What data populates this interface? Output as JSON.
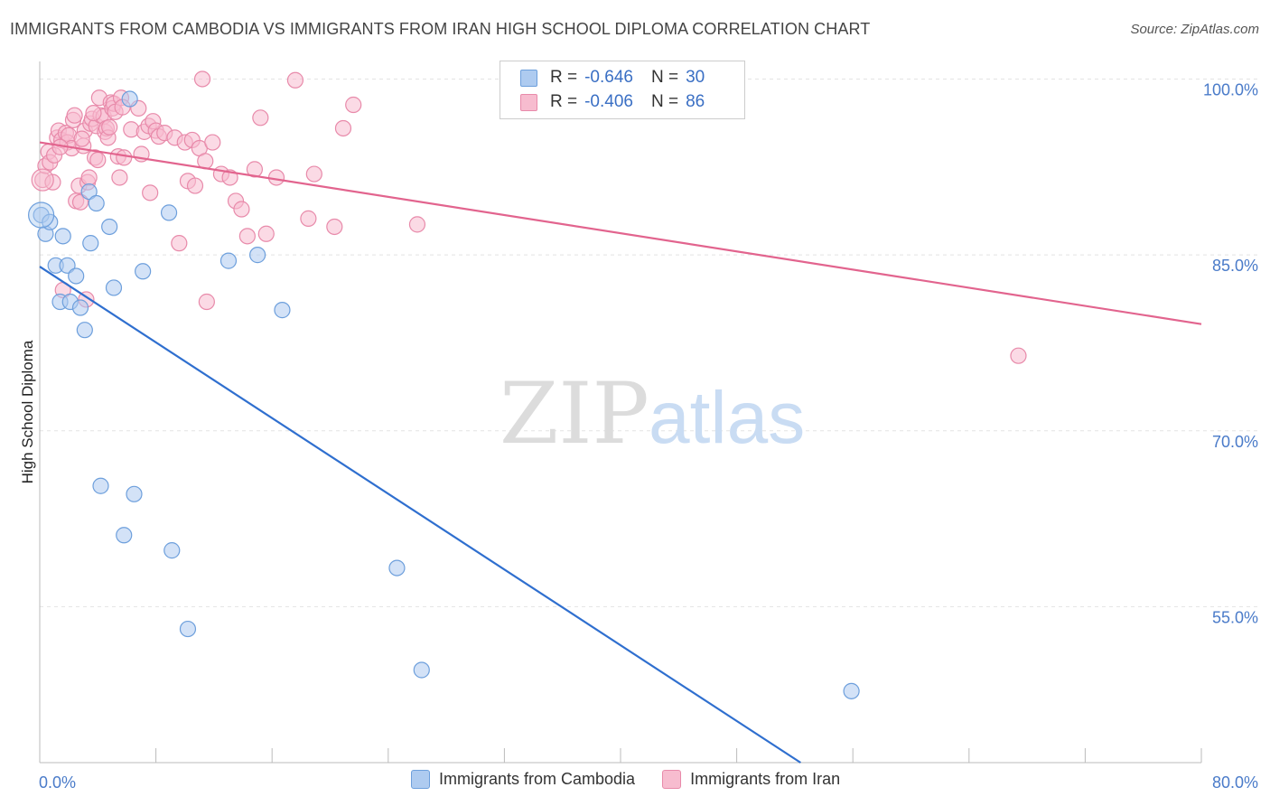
{
  "title": "IMMIGRANTS FROM CAMBODIA VS IMMIGRANTS FROM IRAN HIGH SCHOOL DIPLOMA CORRELATION CHART",
  "source": "Source: ZipAtlas.com",
  "watermark": {
    "zip": "ZIP",
    "atlas": "atlas"
  },
  "legend": {
    "rows": [
      {
        "r_label": "R =",
        "r_value": "-0.646",
        "n_label": "N =",
        "n_value": "30"
      },
      {
        "r_label": "R =",
        "r_value": "-0.406",
        "n_label": "N =",
        "n_value": "86"
      }
    ]
  },
  "colors": {
    "cambodia_fill": "#aecbf0",
    "cambodia_stroke": "#6d9fdc",
    "cambodia_line": "#2f6fcf",
    "iran_fill": "#f7bccf",
    "iran_stroke": "#e88aaa",
    "iran_line": "#e2648e",
    "grid": "#e3e3e3",
    "tick_text": "#4a7bc9"
  },
  "chart_data": {
    "type": "scatter",
    "title": "IMMIGRANTS FROM CAMBODIA VS IMMIGRANTS FROM IRAN HIGH SCHOOL DIPLOMA CORRELATION CHART",
    "xlabel": "",
    "ylabel": "High School Diploma",
    "xlim": [
      0,
      80
    ],
    "ylim": [
      41.7,
      101.5
    ],
    "x_tick_labels": [
      "0.0%",
      "80.0%"
    ],
    "y_ticks": [
      55,
      70,
      85,
      100
    ],
    "y_tick_labels": [
      "55.0%",
      "70.0%",
      "85.0%",
      "100.0%"
    ],
    "grid": "horizontal dashed",
    "legend_position": "top-center",
    "series": [
      {
        "name": "Immigrants from Cambodia",
        "r": -0.646,
        "n": 30,
        "trend": {
          "x": [
            0,
            52.4
          ],
          "y": [
            84.0,
            41.7
          ]
        },
        "points": [
          {
            "x": 0.1,
            "y": 88.4
          },
          {
            "x": 0.4,
            "y": 86.8
          },
          {
            "x": 0.7,
            "y": 87.8
          },
          {
            "x": 1.1,
            "y": 84.1
          },
          {
            "x": 1.4,
            "y": 81.0
          },
          {
            "x": 1.6,
            "y": 86.6
          },
          {
            "x": 1.9,
            "y": 84.1
          },
          {
            "x": 2.1,
            "y": 81.0
          },
          {
            "x": 2.5,
            "y": 83.2
          },
          {
            "x": 2.8,
            "y": 80.5
          },
          {
            "x": 3.1,
            "y": 78.6
          },
          {
            "x": 3.4,
            "y": 90.4
          },
          {
            "x": 3.5,
            "y": 86.0
          },
          {
            "x": 3.9,
            "y": 89.4
          },
          {
            "x": 4.8,
            "y": 87.4
          },
          {
            "x": 5.1,
            "y": 82.2
          },
          {
            "x": 6.2,
            "y": 98.3
          },
          {
            "x": 7.1,
            "y": 83.6
          },
          {
            "x": 8.9,
            "y": 88.6
          },
          {
            "x": 13.0,
            "y": 84.5
          },
          {
            "x": 15.0,
            "y": 85.0
          },
          {
            "x": 16.7,
            "y": 80.3
          },
          {
            "x": 4.2,
            "y": 65.3
          },
          {
            "x": 5.8,
            "y": 61.1
          },
          {
            "x": 6.5,
            "y": 64.6
          },
          {
            "x": 9.1,
            "y": 59.8
          },
          {
            "x": 10.2,
            "y": 53.1
          },
          {
            "x": 24.6,
            "y": 58.3
          },
          {
            "x": 26.3,
            "y": 49.6
          },
          {
            "x": 55.9,
            "y": 47.8
          }
        ]
      },
      {
        "name": "Immigrants from Iran",
        "r": -0.406,
        "n": 86,
        "trend": {
          "x": [
            0,
            80
          ],
          "y": [
            94.6,
            79.1
          ]
        },
        "points": [
          {
            "x": 0.2,
            "y": 91.4
          },
          {
            "x": 0.4,
            "y": 92.6
          },
          {
            "x": 0.6,
            "y": 93.8
          },
          {
            "x": 0.7,
            "y": 92.9
          },
          {
            "x": 0.9,
            "y": 91.2
          },
          {
            "x": 1.0,
            "y": 93.5
          },
          {
            "x": 1.2,
            "y": 95.0
          },
          {
            "x": 1.3,
            "y": 95.6
          },
          {
            "x": 1.5,
            "y": 94.8
          },
          {
            "x": 1.6,
            "y": 82.0
          },
          {
            "x": 1.8,
            "y": 95.4
          },
          {
            "x": 1.9,
            "y": 94.6
          },
          {
            "x": 2.0,
            "y": 95.2
          },
          {
            "x": 2.2,
            "y": 94.1
          },
          {
            "x": 2.3,
            "y": 96.5
          },
          {
            "x": 2.4,
            "y": 96.9
          },
          {
            "x": 2.5,
            "y": 89.6
          },
          {
            "x": 2.7,
            "y": 90.9
          },
          {
            "x": 2.8,
            "y": 89.5
          },
          {
            "x": 3.0,
            "y": 94.3
          },
          {
            "x": 3.1,
            "y": 95.6
          },
          {
            "x": 3.2,
            "y": 81.2
          },
          {
            "x": 3.3,
            "y": 91.2
          },
          {
            "x": 3.4,
            "y": 91.6
          },
          {
            "x": 3.5,
            "y": 96.2
          },
          {
            "x": 3.6,
            "y": 96.6
          },
          {
            "x": 3.8,
            "y": 93.3
          },
          {
            "x": 3.9,
            "y": 96.0
          },
          {
            "x": 4.0,
            "y": 93.1
          },
          {
            "x": 4.1,
            "y": 98.4
          },
          {
            "x": 4.2,
            "y": 96.9
          },
          {
            "x": 4.4,
            "y": 96.8
          },
          {
            "x": 4.5,
            "y": 95.5
          },
          {
            "x": 4.6,
            "y": 95.8
          },
          {
            "x": 4.7,
            "y": 95.0
          },
          {
            "x": 4.8,
            "y": 95.9
          },
          {
            "x": 4.9,
            "y": 98.0
          },
          {
            "x": 5.0,
            "y": 97.5
          },
          {
            "x": 5.1,
            "y": 97.9
          },
          {
            "x": 5.2,
            "y": 97.2
          },
          {
            "x": 5.4,
            "y": 93.4
          },
          {
            "x": 5.5,
            "y": 91.6
          },
          {
            "x": 5.6,
            "y": 98.4
          },
          {
            "x": 5.7,
            "y": 97.6
          },
          {
            "x": 5.8,
            "y": 93.3
          },
          {
            "x": 6.3,
            "y": 95.7
          },
          {
            "x": 6.8,
            "y": 97.5
          },
          {
            "x": 7.0,
            "y": 93.6
          },
          {
            "x": 7.2,
            "y": 95.5
          },
          {
            "x": 7.5,
            "y": 96.0
          },
          {
            "x": 7.6,
            "y": 90.3
          },
          {
            "x": 7.8,
            "y": 96.4
          },
          {
            "x": 8.0,
            "y": 95.6
          },
          {
            "x": 8.2,
            "y": 95.1
          },
          {
            "x": 8.6,
            "y": 95.4
          },
          {
            "x": 9.3,
            "y": 95.0
          },
          {
            "x": 9.6,
            "y": 86.0
          },
          {
            "x": 10.0,
            "y": 94.6
          },
          {
            "x": 10.2,
            "y": 91.3
          },
          {
            "x": 10.5,
            "y": 94.8
          },
          {
            "x": 10.7,
            "y": 90.9
          },
          {
            "x": 11.0,
            "y": 94.1
          },
          {
            "x": 11.4,
            "y": 93.0
          },
          {
            "x": 11.5,
            "y": 81.0
          },
          {
            "x": 11.9,
            "y": 94.6
          },
          {
            "x": 12.5,
            "y": 91.9
          },
          {
            "x": 13.1,
            "y": 91.6
          },
          {
            "x": 13.5,
            "y": 89.6
          },
          {
            "x": 13.9,
            "y": 88.9
          },
          {
            "x": 14.3,
            "y": 86.6
          },
          {
            "x": 14.8,
            "y": 92.3
          },
          {
            "x": 15.2,
            "y": 96.7
          },
          {
            "x": 15.6,
            "y": 86.8
          },
          {
            "x": 16.3,
            "y": 91.6
          },
          {
            "x": 17.6,
            "y": 99.9
          },
          {
            "x": 18.5,
            "y": 88.1
          },
          {
            "x": 18.9,
            "y": 91.9
          },
          {
            "x": 20.3,
            "y": 87.4
          },
          {
            "x": 20.9,
            "y": 95.8
          },
          {
            "x": 21.6,
            "y": 97.8
          },
          {
            "x": 26.0,
            "y": 87.6
          },
          {
            "x": 67.4,
            "y": 76.4
          },
          {
            "x": 11.2,
            "y": 100.0
          },
          {
            "x": 3.7,
            "y": 97.1
          },
          {
            "x": 2.9,
            "y": 94.9
          },
          {
            "x": 1.4,
            "y": 94.2
          }
        ]
      }
    ]
  },
  "bottom_legend": {
    "items": [
      {
        "label": "Immigrants from Cambodia"
      },
      {
        "label": "Immigrants from Iran"
      }
    ]
  }
}
